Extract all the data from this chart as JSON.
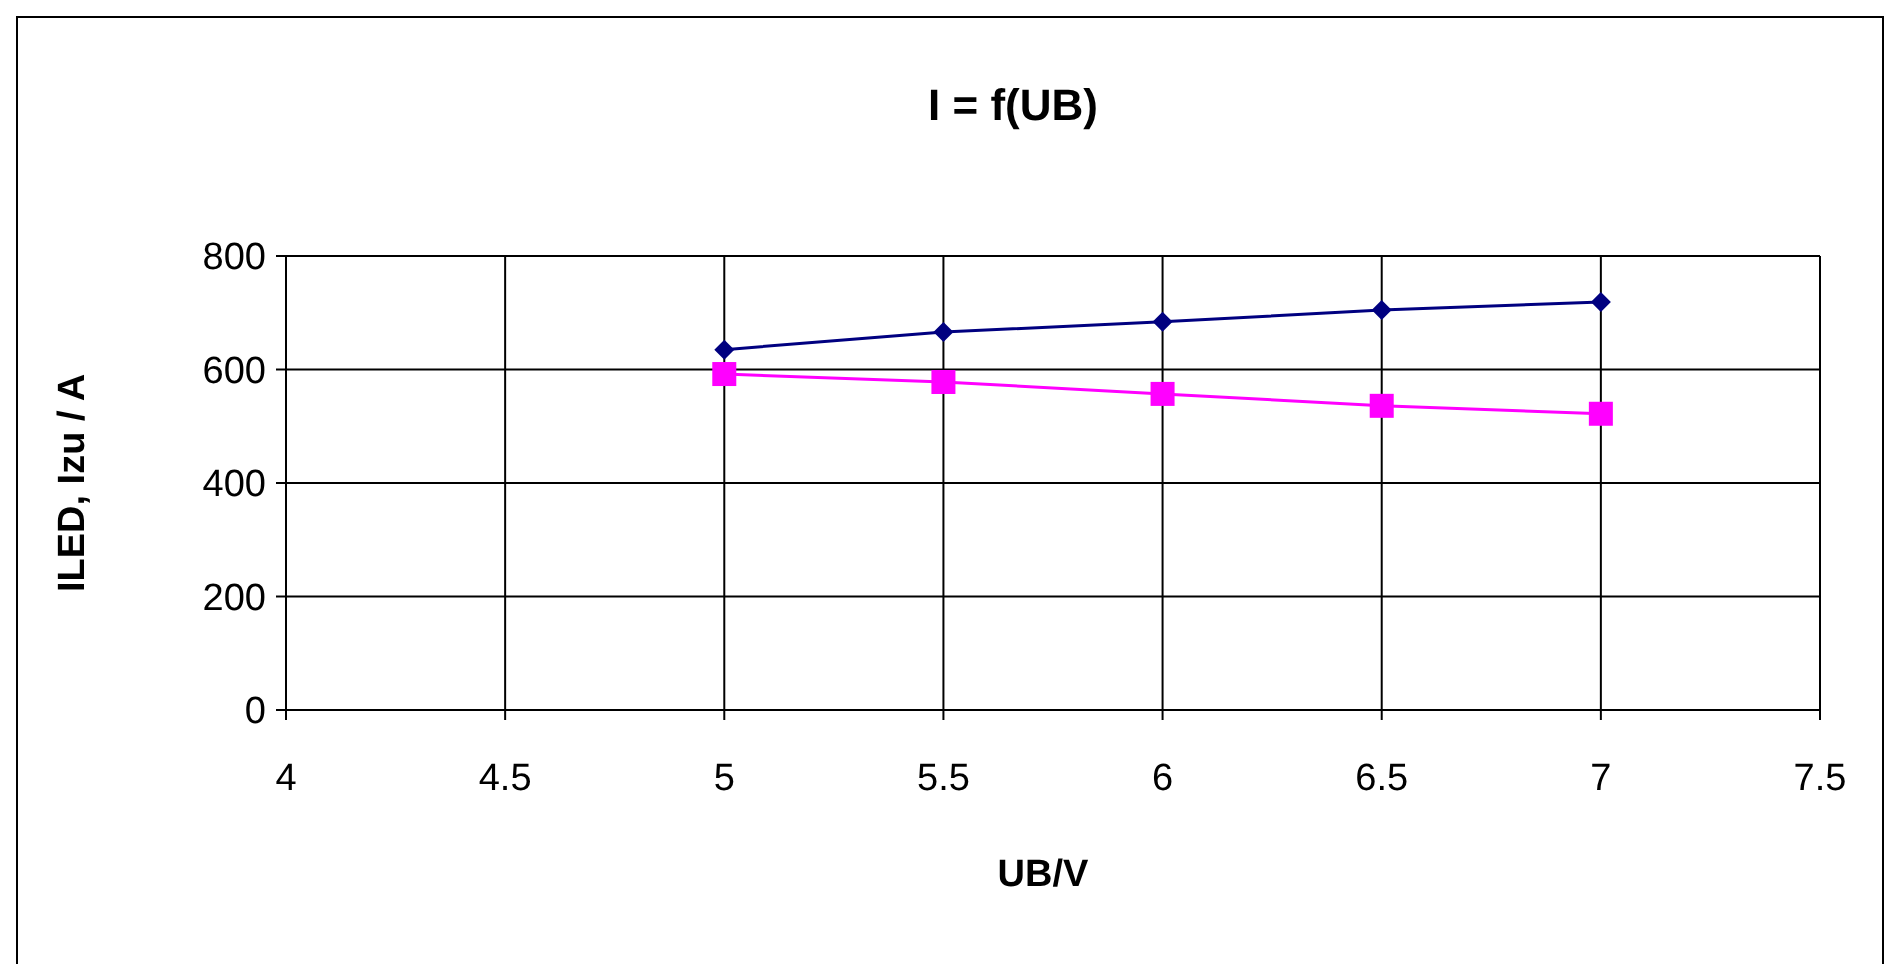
{
  "chart_data": {
    "type": "line",
    "title": "I = f(UB)",
    "xlabel": "UB/V",
    "ylabel": "ILED, Izu / A",
    "x": [
      5,
      5.5,
      6,
      6.5,
      7
    ],
    "series": [
      {
        "color": "#000080",
        "marker": "diamond",
        "values": [
          635,
          666,
          684,
          705,
          719
        ]
      },
      {
        "color": "#ff00ff",
        "marker": "square",
        "values": [
          592,
          578,
          557,
          536,
          522
        ]
      }
    ],
    "xlim": [
      4,
      7.5
    ],
    "xticks": [
      4,
      4.5,
      5,
      5.5,
      6,
      6.5,
      7,
      7.5
    ],
    "ylim": [
      0,
      800
    ],
    "yticks": [
      0,
      200,
      400,
      600,
      800
    ],
    "grid": true
  }
}
